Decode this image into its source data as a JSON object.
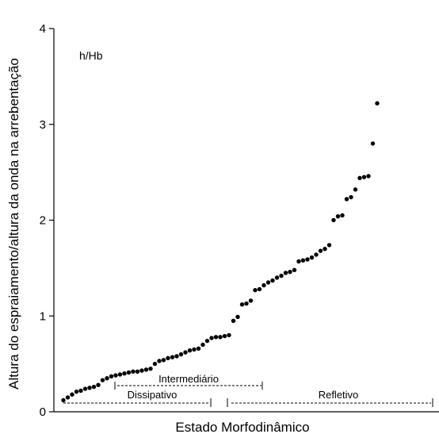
{
  "chart_data": {
    "type": "scatter",
    "title": "",
    "ylabel": "Altura do espraiamento/altura da onda na arrebentação",
    "xlabel": "Estado Morfodinâmico",
    "ylim": [
      0,
      4
    ],
    "yticks": [
      "0",
      "1",
      "2",
      "3",
      "4"
    ],
    "ytick_values": [
      0,
      1,
      2,
      3,
      4
    ],
    "legend_label": "h/Hb",
    "legend_position": "top-left",
    "grid": false,
    "series": [
      {
        "values": [
          0.12,
          0.15,
          0.18,
          0.21,
          0.22,
          0.24,
          0.25,
          0.26,
          0.28,
          0.33,
          0.35,
          0.37,
          0.38,
          0.39,
          0.4,
          0.41,
          0.42,
          0.42,
          0.43,
          0.44,
          0.45,
          0.5,
          0.53,
          0.54,
          0.56,
          0.57,
          0.58,
          0.6,
          0.62,
          0.64,
          0.65,
          0.66,
          0.7,
          0.74,
          0.77,
          0.78,
          0.78,
          0.79,
          0.8,
          0.95,
          0.99,
          1.12,
          1.13,
          1.16,
          1.27,
          1.28,
          1.32,
          1.35,
          1.37,
          1.4,
          1.42,
          1.45,
          1.46,
          1.48,
          1.57,
          1.58,
          1.59,
          1.61,
          1.64,
          1.68,
          1.7,
          1.74,
          2.0,
          2.04,
          2.05,
          2.22,
          2.24,
          2.32,
          2.44,
          2.45,
          2.46,
          2.8,
          3.22
        ]
      }
    ],
    "annotations": {
      "intermediate": "Intermediário",
      "dissipative": "Dissipativo",
      "reflective": "Refletivo"
    }
  }
}
